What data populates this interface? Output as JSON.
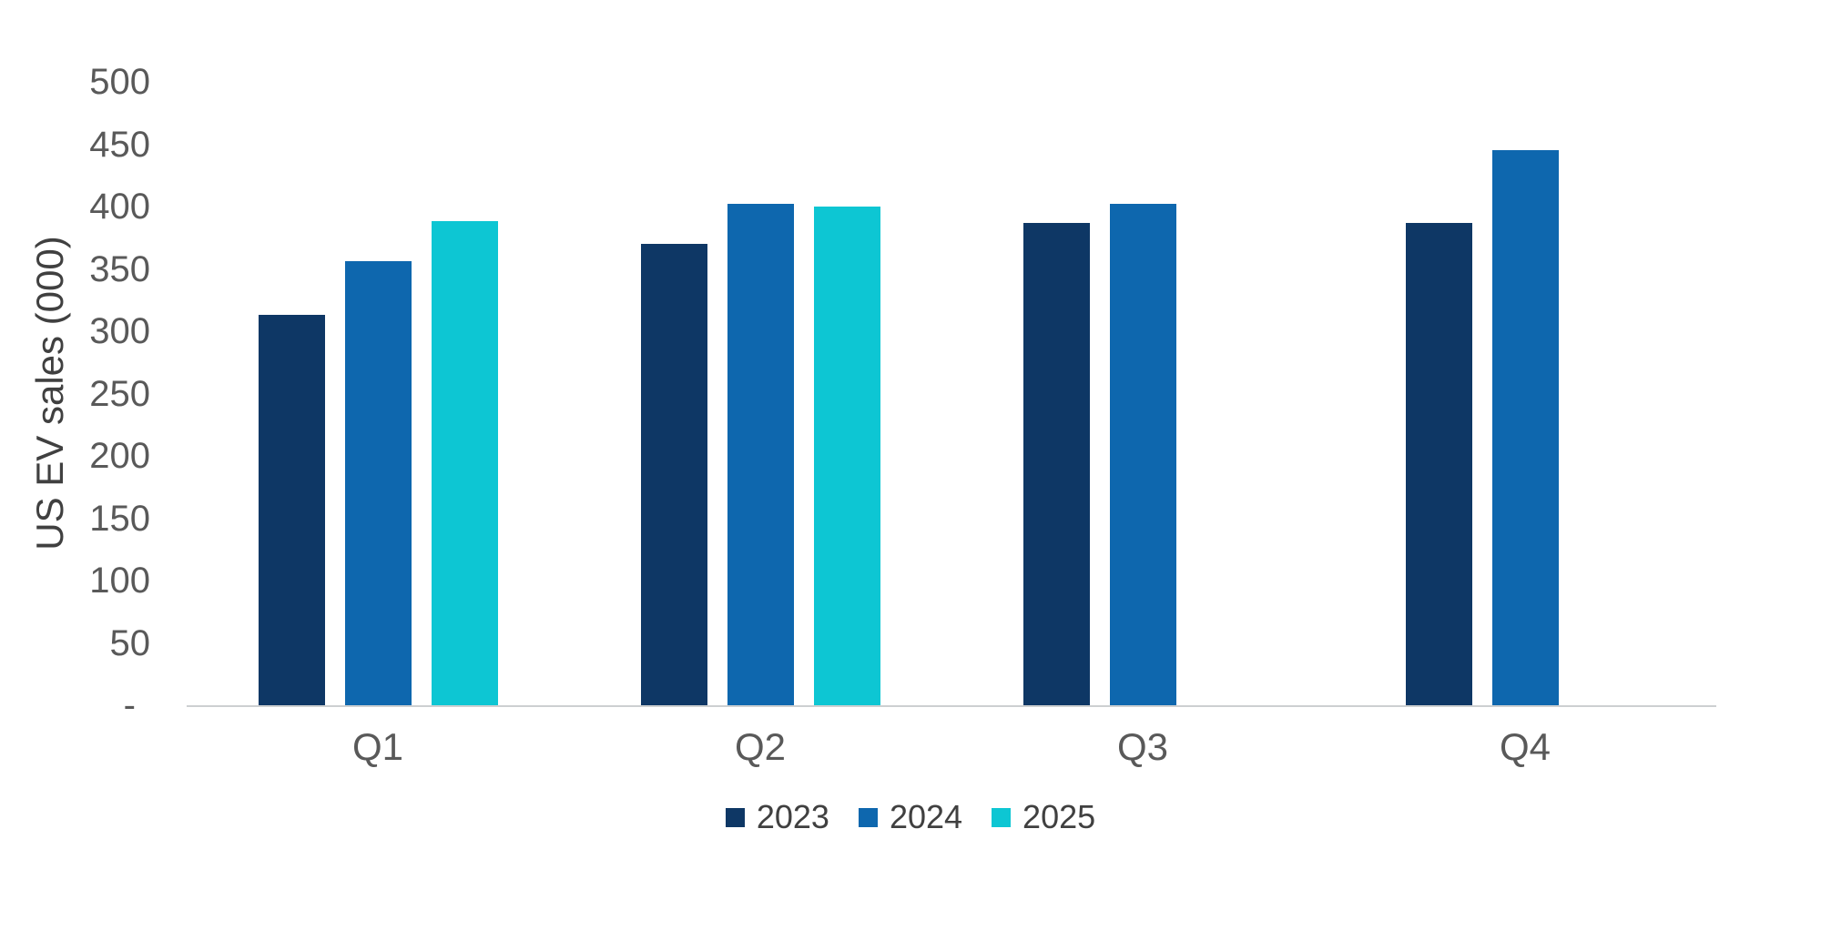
{
  "chart_data": {
    "type": "bar",
    "title": "",
    "categories": [
      "Q1",
      "Q2",
      "Q3",
      "Q4"
    ],
    "series": [
      {
        "name": "2023",
        "color": "#0E3765",
        "values": [
          313,
          370,
          387,
          387
        ]
      },
      {
        "name": "2024",
        "color": "#0E67AE",
        "values": [
          356,
          402,
          402,
          445
        ]
      },
      {
        "name": "2025",
        "color": "#0DC6D3",
        "values": [
          388,
          400,
          null,
          null
        ]
      }
    ],
    "xlabel": "",
    "ylabel": "US EV sales (000)",
    "ylim": [
      0,
      500
    ],
    "ytick_step": 50,
    "y_tick_labels": [
      "500",
      "450",
      "400",
      "350",
      "300",
      "250",
      "200",
      "150",
      "100",
      "50",
      "-"
    ],
    "grid": false,
    "legend_position": "bottom"
  },
  "colors": {
    "axis_line": "#CDD0D1",
    "tick_text": "#595959",
    "axis_title_text": "#404040",
    "legend_text": "#404040",
    "background": "#FFFFFF"
  }
}
